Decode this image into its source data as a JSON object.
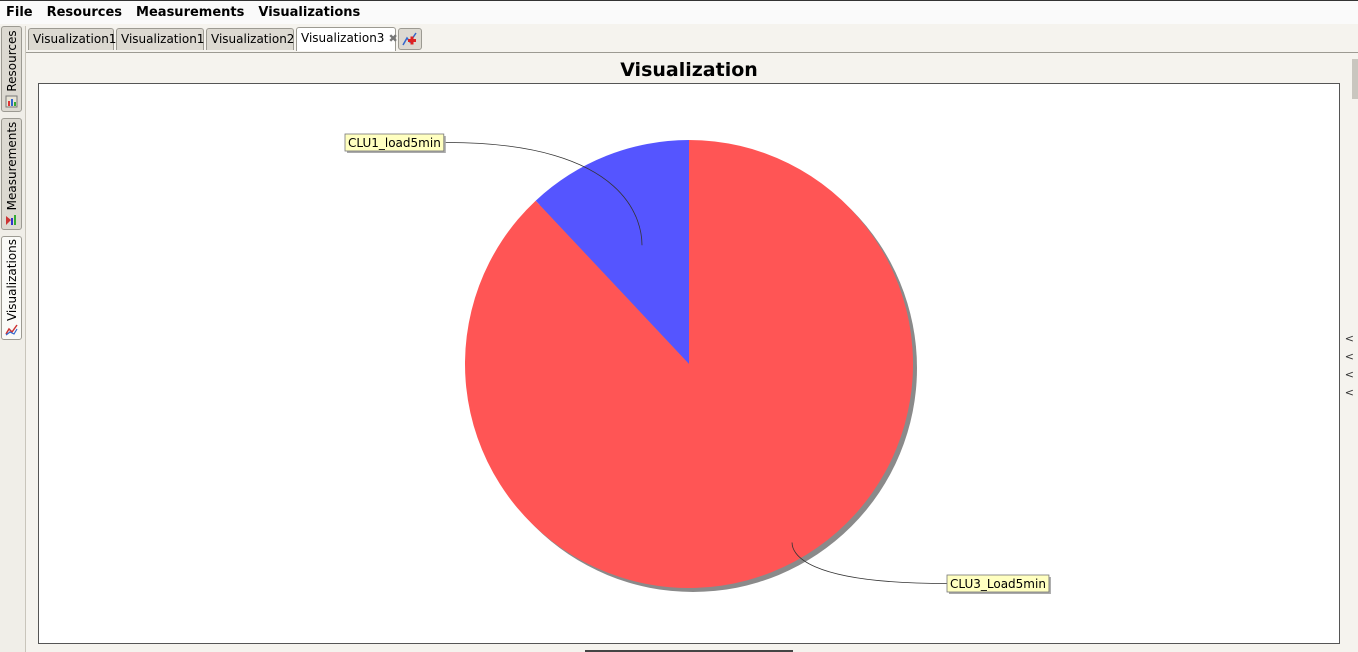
{
  "menubar": {
    "items": [
      "File",
      "Resources",
      "Measurements",
      "Visualizations"
    ]
  },
  "side_tabs": [
    {
      "label": "Resources",
      "icon": "resources-icon"
    },
    {
      "label": "Measurements",
      "icon": "measurements-icon"
    },
    {
      "label": "Visualizations",
      "icon": "visualizations-icon",
      "active": true
    }
  ],
  "tabs": [
    {
      "label": "Visualization1"
    },
    {
      "label": "Visualization1"
    },
    {
      "label": "Visualization2"
    },
    {
      "label": "Visualization3",
      "active": true,
      "close": "✖"
    }
  ],
  "add_tab_icon": "add-visualization-icon",
  "chart_data": {
    "type": "pie",
    "title": "Visualization",
    "slices": [
      {
        "label": "CLU1_load5min",
        "value": 12,
        "color": "#5555ff"
      },
      {
        "label": "CLU3_Load5min",
        "value": 88,
        "color": "#ff5555"
      }
    ],
    "start_angle_deg": 0,
    "shadow": true
  },
  "side_chevrons": [
    "<",
    "<",
    "<",
    "<"
  ]
}
